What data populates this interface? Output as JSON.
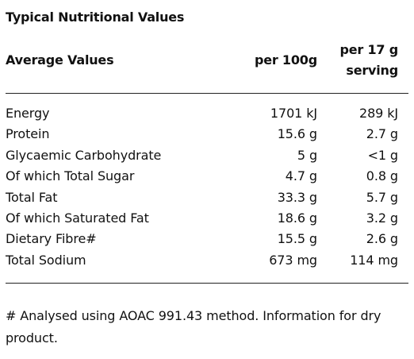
{
  "title": "Typical Nutritional Values",
  "header": {
    "label": "Average Values",
    "col1": "per 100g",
    "col2_line1": "per 17 g",
    "col2_line2": "serving"
  },
  "rows": [
    {
      "label": "Energy",
      "per100g": "1701 kJ",
      "perServing": "289 kJ"
    },
    {
      "label": "Protein",
      "per100g": "15.6 g",
      "perServing": "2.7 g"
    },
    {
      "label": "Glycaemic Carbohydrate",
      "per100g": "5 g",
      "perServing": "<1 g"
    },
    {
      "label": "Of which Total Sugar",
      "per100g": "4.7 g",
      "perServing": "0.8 g"
    },
    {
      "label": "Total Fat",
      "per100g": "33.3 g",
      "perServing": "5.7 g"
    },
    {
      "label": "Of which Saturated Fat",
      "per100g": "18.6 g",
      "perServing": "3.2 g"
    },
    {
      "label": "Dietary Fibre#",
      "per100g": "15.5 g",
      "perServing": "2.6 g"
    },
    {
      "label": "Total Sodium",
      "per100g": "673 mg",
      "perServing": "114 mg"
    }
  ],
  "footnote": "# Analysed using AOAC 991.43 method. Information for dry product."
}
